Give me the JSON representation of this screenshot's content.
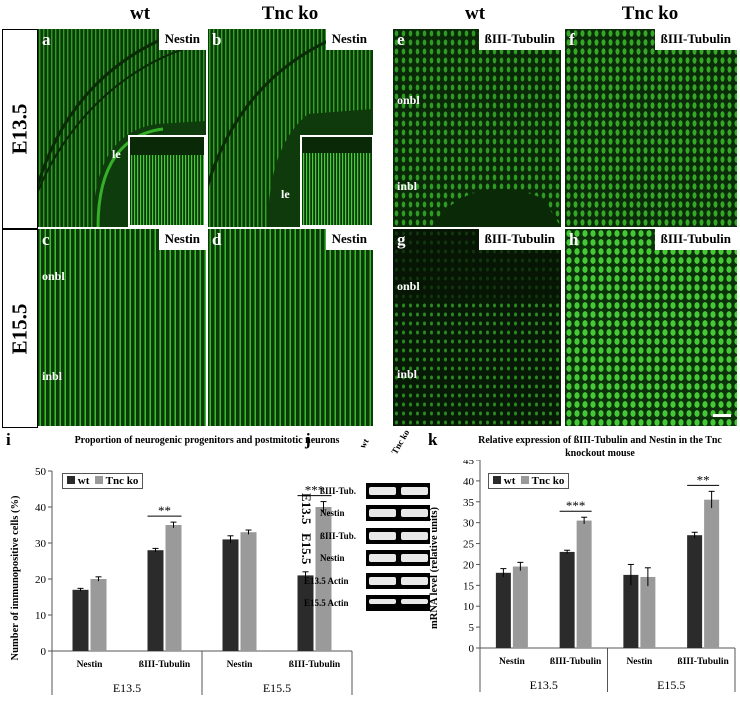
{
  "column_headers": [
    "wt",
    "Tnc ko",
    "wt",
    "Tnc ko"
  ],
  "row_headers": [
    "E13.5",
    "E15.5"
  ],
  "panels": [
    {
      "letter": "a",
      "marker": "Nestin",
      "labels": [
        "le"
      ]
    },
    {
      "letter": "b",
      "marker": "Nestin",
      "labels": [
        "le"
      ]
    },
    {
      "letter": "e",
      "marker": "ßIII-Tubulin",
      "labels": [
        "onbl",
        "inbl"
      ]
    },
    {
      "letter": "f",
      "marker": "ßIII-Tubulin",
      "labels": []
    },
    {
      "letter": "c",
      "marker": "Nestin",
      "labels": [
        "onbl",
        "inbl"
      ]
    },
    {
      "letter": "d",
      "marker": "Nestin",
      "labels": []
    },
    {
      "letter": "g",
      "marker": "ßIII-Tubulin",
      "labels": [
        "onbl",
        "inbl"
      ]
    },
    {
      "letter": "h",
      "marker": "ßIII-Tubulin",
      "labels": []
    }
  ],
  "panel_i_letter": "i",
  "panel_j_letter": "j",
  "panel_k_letter": "k",
  "gel": {
    "lanes": [
      "wt",
      "Tnc ko"
    ],
    "groups": [
      "E13.5",
      "E15.5"
    ],
    "rows": [
      "ßIII-Tub.",
      "Nestin",
      "ßIII-Tub.",
      "Nestin",
      "E13.5 Actin",
      "E15.5 Actin"
    ]
  },
  "chart_data": [
    {
      "type": "bar",
      "title": "Proportion of neurogenic progenitors and postmitotic neurons",
      "ylabel": "Number of immunopositive cells (%)",
      "xlabel": "",
      "ylim": [
        0,
        50
      ],
      "yticks": [
        0,
        10,
        20,
        30,
        40,
        50
      ],
      "categories": [
        "Nestin",
        "ßIII-Tubulin",
        "Nestin",
        "ßIII-Tubulin"
      ],
      "groups": [
        "E13.5",
        "E15.5"
      ],
      "series": [
        {
          "name": "wt",
          "color": "#2b2b2b",
          "values": [
            17,
            28,
            31,
            21
          ],
          "errors": [
            0.4,
            0.5,
            1.0,
            1.0
          ]
        },
        {
          "name": "Tnc ko",
          "color": "#9a9a9a",
          "values": [
            20,
            35,
            33,
            40
          ],
          "errors": [
            0.6,
            0.8,
            0.6,
            1.5
          ]
        }
      ],
      "significance": [
        {
          "category_index": 1,
          "label": "**"
        },
        {
          "category_index": 3,
          "label": "***"
        }
      ],
      "legend": "top-left",
      "grid": false
    },
    {
      "type": "bar",
      "title": "Relative expression of ßIII-Tubulin and Nestin in the Tnc knockout mouse",
      "ylabel": "mRNA level (relative units)",
      "xlabel": "",
      "ylim": [
        0,
        45
      ],
      "yticks": [
        0,
        5,
        10,
        15,
        20,
        25,
        30,
        35,
        40,
        45
      ],
      "categories": [
        "Nestin",
        "ßIII-Tubulin",
        "Nestin",
        "ßIII-Tubulin"
      ],
      "groups": [
        "E13.5",
        "E15.5"
      ],
      "series": [
        {
          "name": "wt",
          "color": "#2b2b2b",
          "values": [
            18,
            23,
            17.5,
            27
          ],
          "errors": [
            1.0,
            0.4,
            2.5,
            0.7
          ]
        },
        {
          "name": "Tnc ko",
          "color": "#9a9a9a",
          "values": [
            19.5,
            30.5,
            17,
            35.5
          ],
          "errors": [
            1.0,
            0.8,
            2.2,
            2.0
          ]
        }
      ],
      "significance": [
        {
          "category_index": 1,
          "label": "***"
        },
        {
          "category_index": 3,
          "label": "**"
        }
      ],
      "legend": "top-left",
      "grid": false
    }
  ]
}
